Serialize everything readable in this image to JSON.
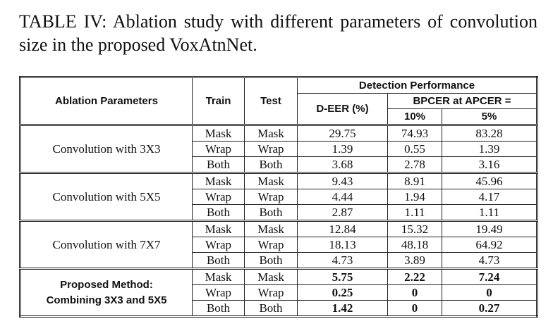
{
  "caption": "TABLE IV: Ablation study with different parameters of convolution size in the proposed VoxAtnNet.",
  "table": {
    "header": {
      "group": "Ablation Parameters",
      "train": "Train",
      "test": "Test",
      "detection": "Detection Performance",
      "deer": "D-EER (%)",
      "bpcer": "BPCER at APCER =",
      "apcer": [
        "10%",
        "5%"
      ]
    },
    "groups": [
      {
        "label_lines": [
          "Convolution with 3X3"
        ],
        "rows": [
          [
            "Mask",
            "Mask",
            "29.75",
            "74.93",
            "83.28"
          ],
          [
            "Wrap",
            "Wrap",
            "1.39",
            "0.55",
            "1.39"
          ],
          [
            "Both",
            "Both",
            "3.68",
            "2.78",
            "3.16"
          ]
        ]
      },
      {
        "label_lines": [
          "Convolution with 5X5"
        ],
        "rows": [
          [
            "Mask",
            "Mask",
            "9.43",
            "8.91",
            "45.96"
          ],
          [
            "Wrap",
            "Wrap",
            "4.44",
            "1.94",
            "4.17"
          ],
          [
            "Both",
            "Both",
            "2.87",
            "1.11",
            "1.11"
          ]
        ]
      },
      {
        "label_lines": [
          "Convolution with 7X7"
        ],
        "rows": [
          [
            "Mask",
            "Mask",
            "12.84",
            "15.32",
            "19.49"
          ],
          [
            "Wrap",
            "Wrap",
            "18.13",
            "48.18",
            "64.92"
          ],
          [
            "Both",
            "Both",
            "4.73",
            "3.89",
            "4.73"
          ]
        ]
      },
      {
        "label_lines": [
          "Proposed Method:",
          "Combining 3X3 and 5X5"
        ],
        "rows": [
          [
            "Mask",
            "Mask",
            "5.75",
            "2.22",
            "7.24"
          ],
          [
            "Wrap",
            "Wrap",
            "0.25",
            "0",
            "0"
          ],
          [
            "Both",
            "Both",
            "1.42",
            "0",
            "0.27"
          ]
        ]
      }
    ]
  }
}
